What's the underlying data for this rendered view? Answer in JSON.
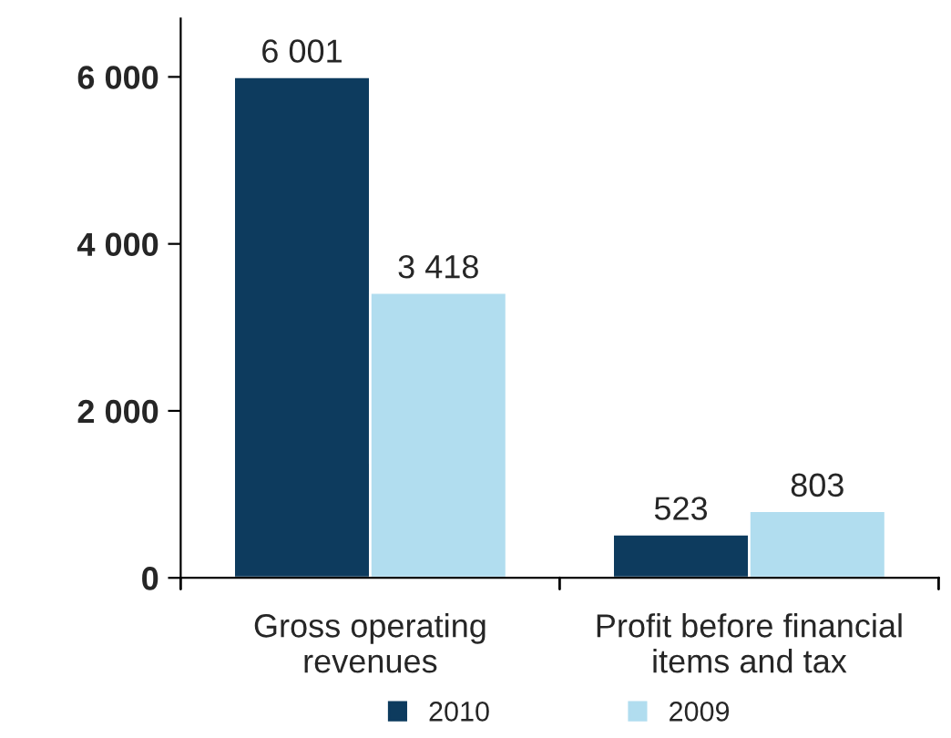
{
  "chart_data": {
    "type": "bar",
    "categories": [
      "Gross operating\nrevenues",
      "Profit before financial\nitems and tax"
    ],
    "series": [
      {
        "name": "2010",
        "color": "#0d3b5e",
        "values": [
          6001,
          523
        ],
        "value_labels": [
          "6 001",
          "523"
        ]
      },
      {
        "name": "2009",
        "color": "#b1ddef",
        "values": [
          3418,
          803
        ],
        "value_labels": [
          "3 418",
          "803"
        ]
      }
    ],
    "ylim": [
      0,
      6700
    ],
    "yticks": [
      0,
      {
        "value": 2000,
        "label": "2 000"
      },
      {
        "value": 4000,
        "label": "4 000"
      },
      {
        "value": 6000,
        "label": "6 000"
      }
    ],
    "grid": false,
    "legend": "bottom"
  }
}
